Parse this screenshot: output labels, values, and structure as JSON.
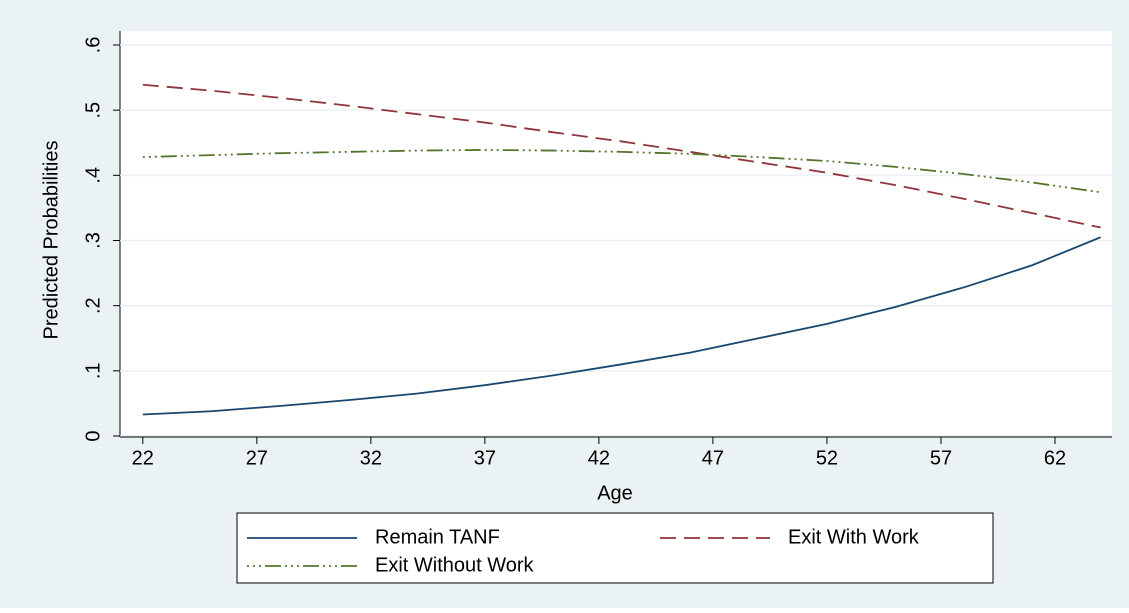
{
  "chart_data": {
    "type": "line",
    "x_label": "Age",
    "y_label": "Predicted Probabilities",
    "x": [
      22,
      25,
      28,
      31,
      34,
      37,
      40,
      43,
      46,
      49,
      52,
      55,
      58,
      61,
      64
    ],
    "series": [
      {
        "name": "Remain TANF",
        "color": "#1a476f",
        "dash": "solid",
        "values": [
          0.033,
          0.038,
          0.046,
          0.055,
          0.065,
          0.078,
          0.093,
          0.11,
          0.128,
          0.15,
          0.172,
          0.198,
          0.228,
          0.262,
          0.305
        ]
      },
      {
        "name": "Exit With Work",
        "color": "#90353b",
        "dash": "longdash",
        "values": [
          0.539,
          0.53,
          0.519,
          0.507,
          0.494,
          0.481,
          0.466,
          0.452,
          0.436,
          0.42,
          0.404,
          0.385,
          0.364,
          0.342,
          0.32
        ]
      },
      {
        "name": "Exit Without Work",
        "color": "#55752f",
        "dash": "dashdot",
        "values": [
          0.428,
          0.431,
          0.434,
          0.436,
          0.438,
          0.439,
          0.438,
          0.436,
          0.433,
          0.428,
          0.422,
          0.413,
          0.402,
          0.389,
          0.374
        ]
      }
    ],
    "xlim": [
      21,
      64.5
    ],
    "xticks": [
      22,
      27,
      32,
      37,
      42,
      47,
      52,
      57,
      62
    ],
    "ylim": [
      0,
      0.6
    ],
    "yticks": [
      0,
      {
        "value": 0.1,
        "label": ".1"
      },
      {
        "value": 0.2,
        "label": ".2"
      },
      {
        "value": 0.3,
        "label": ".3"
      },
      {
        "value": 0.4,
        "label": ".4"
      },
      {
        "value": 0.5,
        "label": ".5"
      },
      {
        "value": 0.6,
        "label": ".6"
      }
    ],
    "grid": true,
    "legend": "bottom"
  }
}
